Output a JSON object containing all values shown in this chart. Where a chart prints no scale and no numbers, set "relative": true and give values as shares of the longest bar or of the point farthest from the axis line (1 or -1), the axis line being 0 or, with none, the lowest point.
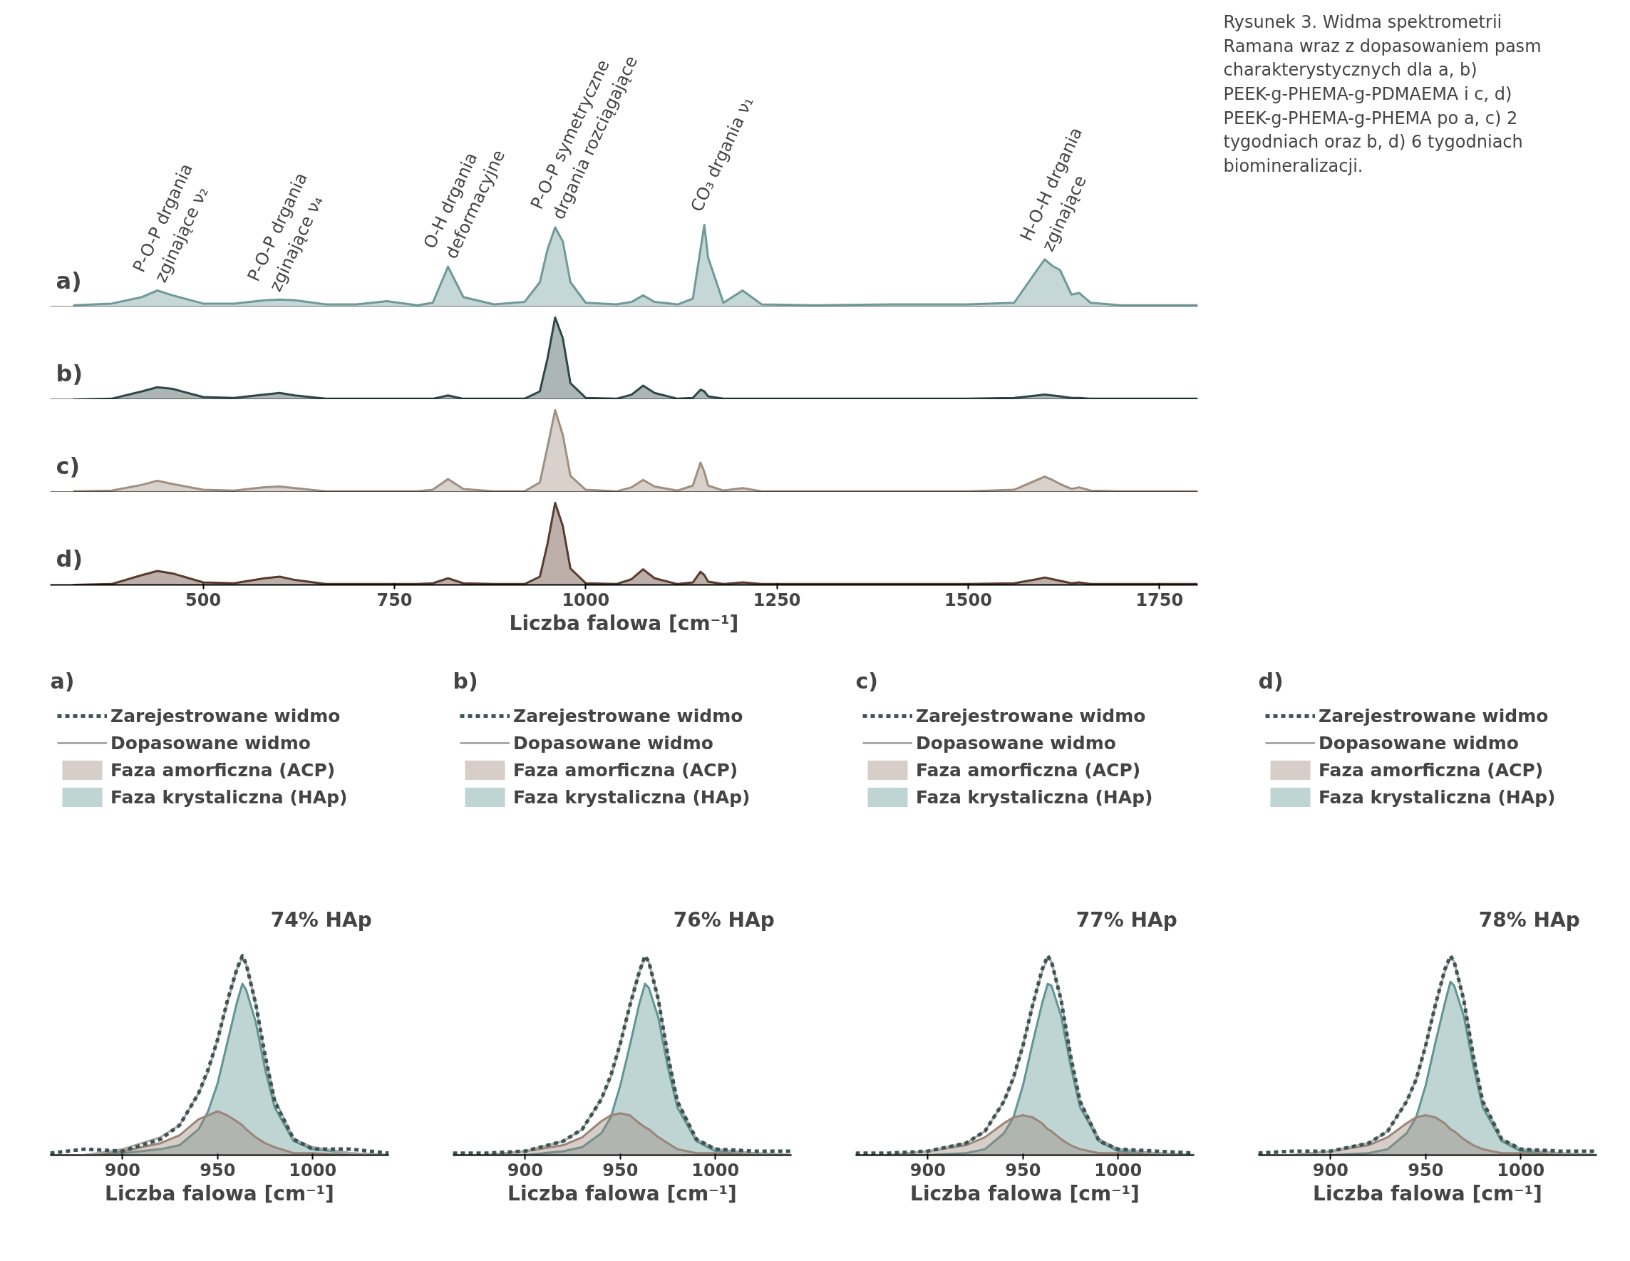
{
  "chart_data": [
    {
      "type": "area",
      "title": "a)",
      "relative": true,
      "xlim": [
        300,
        1800
      ],
      "tick_labels": false,
      "grid": false,
      "x": [
        330,
        380,
        420,
        440,
        460,
        500,
        540,
        580,
        600,
        620,
        660,
        700,
        740,
        780,
        800,
        820,
        840,
        880,
        920,
        940,
        950,
        960,
        970,
        980,
        1000,
        1040,
        1060,
        1075,
        1090,
        1120,
        1140,
        1150,
        1155,
        1160,
        1180,
        1205,
        1230,
        1300,
        1400,
        1500,
        1560,
        1590,
        1600,
        1610,
        1620,
        1635,
        1645,
        1660,
        1700,
        1800
      ],
      "series": [
        {
          "color": "#6e9a99",
          "values": [
            0.02,
            0.04,
            0.12,
            0.2,
            0.14,
            0.04,
            0.04,
            0.08,
            0.09,
            0.08,
            0.03,
            0.03,
            0.07,
            0.02,
            0.05,
            0.49,
            0.12,
            0.03,
            0.06,
            0.3,
            0.7,
            0.97,
            0.8,
            0.3,
            0.05,
            0.03,
            0.06,
            0.14,
            0.06,
            0.03,
            0.1,
            0.7,
            1.0,
            0.6,
            0.05,
            0.2,
            0.03,
            0.02,
            0.03,
            0.03,
            0.05,
            0.45,
            0.58,
            0.5,
            0.45,
            0.15,
            0.17,
            0.05,
            0.02,
            0.02
          ]
        }
      ],
      "annotations": [
        {
          "text": "P-O-P drgania\nzginające ν₂",
          "x": 440,
          "y": 0.2
        },
        {
          "text": "P-O-P drgania\nzginające ν₄",
          "x": 590,
          "y": 0.09
        },
        {
          "text": "O-H drgania\ndeformacyjne",
          "x": 820,
          "y": 0.49
        },
        {
          "text": "P-O-P symetryczne\ndrgania rozciągające",
          "x": 960,
          "y": 0.97
        },
        {
          "text": "CO₃ drgania ν₁",
          "x": 1155,
          "y": 1.0
        },
        {
          "text": "H-O-H drgania\nzginające",
          "x": 1600,
          "y": 0.58
        }
      ]
    },
    {
      "type": "area",
      "title": "b)",
      "relative": true,
      "xlim": [
        300,
        1800
      ],
      "tick_labels": false,
      "grid": false,
      "x": [
        330,
        380,
        420,
        440,
        460,
        500,
        540,
        580,
        600,
        620,
        660,
        700,
        740,
        780,
        800,
        820,
        840,
        880,
        920,
        940,
        950,
        960,
        970,
        980,
        1000,
        1040,
        1060,
        1075,
        1090,
        1120,
        1140,
        1150,
        1155,
        1160,
        1180,
        1205,
        1230,
        1300,
        1400,
        1500,
        1560,
        1590,
        1600,
        1610,
        1620,
        1635,
        1645,
        1660,
        1700,
        1800
      ],
      "series": [
        {
          "color": "#2e4846",
          "values": [
            0.0,
            0.01,
            0.1,
            0.15,
            0.13,
            0.03,
            0.02,
            0.06,
            0.08,
            0.05,
            0.01,
            0.01,
            0.01,
            0.01,
            0.01,
            0.05,
            0.01,
            0.01,
            0.01,
            0.1,
            0.5,
            1.0,
            0.75,
            0.2,
            0.02,
            0.01,
            0.06,
            0.17,
            0.08,
            0.01,
            0.02,
            0.12,
            0.1,
            0.04,
            0.01,
            0.01,
            0.01,
            0.01,
            0.01,
            0.01,
            0.02,
            0.05,
            0.06,
            0.05,
            0.04,
            0.02,
            0.02,
            0.01,
            0.01,
            0.01
          ]
        }
      ]
    },
    {
      "type": "area",
      "title": "c)",
      "relative": true,
      "xlim": [
        300,
        1800
      ],
      "tick_labels": false,
      "grid": false,
      "x": [
        330,
        380,
        420,
        440,
        460,
        500,
        540,
        580,
        600,
        620,
        660,
        700,
        740,
        780,
        800,
        820,
        840,
        880,
        920,
        940,
        950,
        960,
        970,
        980,
        1000,
        1040,
        1060,
        1075,
        1090,
        1120,
        1140,
        1150,
        1155,
        1160,
        1180,
        1205,
        1230,
        1300,
        1400,
        1500,
        1560,
        1590,
        1600,
        1610,
        1620,
        1635,
        1645,
        1660,
        1700,
        1800
      ],
      "series": [
        {
          "color": "#a08e80",
          "values": [
            0.01,
            0.02,
            0.09,
            0.14,
            0.1,
            0.03,
            0.02,
            0.06,
            0.07,
            0.05,
            0.01,
            0.01,
            0.01,
            0.01,
            0.03,
            0.16,
            0.04,
            0.01,
            0.01,
            0.12,
            0.55,
            1.0,
            0.7,
            0.2,
            0.03,
            0.01,
            0.06,
            0.15,
            0.07,
            0.02,
            0.08,
            0.36,
            0.25,
            0.08,
            0.02,
            0.05,
            0.01,
            0.01,
            0.01,
            0.01,
            0.03,
            0.15,
            0.19,
            0.15,
            0.1,
            0.04,
            0.06,
            0.02,
            0.01,
            0.01
          ]
        }
      ]
    },
    {
      "type": "area",
      "title": "d)",
      "relative": true,
      "xlim": [
        300,
        1800
      ],
      "xticks": [
        500,
        750,
        1000,
        1250,
        1500,
        1750
      ],
      "tick_labels": "x",
      "grid": false,
      "xlabel": "Liczba falowa [cm⁻¹]",
      "x": [
        330,
        380,
        420,
        440,
        460,
        500,
        540,
        580,
        600,
        620,
        660,
        700,
        740,
        780,
        800,
        820,
        840,
        880,
        920,
        940,
        950,
        960,
        970,
        980,
        1000,
        1040,
        1060,
        1075,
        1090,
        1120,
        1140,
        1150,
        1155,
        1160,
        1180,
        1205,
        1230,
        1300,
        1400,
        1500,
        1560,
        1590,
        1600,
        1610,
        1620,
        1635,
        1645,
        1660,
        1700,
        1800
      ],
      "series": [
        {
          "color": "#5a3a2c",
          "values": [
            0.0,
            0.01,
            0.12,
            0.17,
            0.14,
            0.03,
            0.02,
            0.08,
            0.1,
            0.06,
            0.01,
            0.01,
            0.01,
            0.01,
            0.02,
            0.08,
            0.02,
            0.01,
            0.01,
            0.1,
            0.5,
            1.0,
            0.72,
            0.2,
            0.02,
            0.01,
            0.07,
            0.19,
            0.08,
            0.01,
            0.03,
            0.16,
            0.12,
            0.04,
            0.01,
            0.03,
            0.01,
            0.01,
            0.01,
            0.01,
            0.02,
            0.07,
            0.09,
            0.07,
            0.05,
            0.02,
            0.03,
            0.01,
            0.01,
            0.01
          ]
        }
      ]
    },
    {
      "type": "other",
      "annotations": [
        "Rysunek 3. Widma spektrometrii Ramana wraz z dopasowaniem pasm charakterystycznych dla a, b) PEEK-g-PHEMA-g-PDMAEMA i c, d) PEEK-g-PHEMA-g-PHEMA po a, c) 2 tygodniach oraz b, d) 6 tygodniach biomineralizacji."
      ]
    },
    {
      "type": "line",
      "title": "a)",
      "relative": true,
      "xlim": [
        862,
        1040
      ],
      "xticks": [
        900,
        950,
        1000
      ],
      "xlabel": "Liczba falowa [cm⁻¹]",
      "legend": "top",
      "grid": false,
      "annotations": [
        "74% HAp"
      ],
      "x": [
        862,
        880,
        900,
        920,
        930,
        940,
        945,
        950,
        955,
        960,
        963,
        965,
        970,
        975,
        980,
        990,
        1000,
        1020,
        1040
      ],
      "series": [
        {
          "name": "Zarejestrowane widmo",
          "type": "line",
          "line_style": "dashed",
          "color": "#3d5452",
          "values": [
            0.01,
            0.03,
            0.02,
            0.08,
            0.15,
            0.31,
            0.43,
            0.58,
            0.77,
            0.93,
            1.0,
            0.96,
            0.76,
            0.5,
            0.27,
            0.08,
            0.03,
            0.03,
            0.01
          ]
        },
        {
          "name": "Dopasowane widmo",
          "type": "line",
          "color": "#a9a9a9",
          "values": [
            0,
            0,
            0.03,
            0.09,
            0.15,
            0.31,
            0.42,
            0.58,
            0.76,
            0.93,
            0.99,
            0.96,
            0.76,
            0.49,
            0.28,
            0.08,
            0.04,
            0.01,
            0
          ]
        },
        {
          "name": "Faza amorficzna (ACP)",
          "type": "area",
          "color": "#9a8578",
          "values": [
            0,
            0,
            0.02,
            0.06,
            0.1,
            0.18,
            0.2,
            0.22,
            0.2,
            0.17,
            0.15,
            0.13,
            0.09,
            0.06,
            0.04,
            0.01,
            0.01,
            0,
            0
          ]
        },
        {
          "name": "Faza krystaliczna (HAp)",
          "type": "area",
          "color": "#5f9594",
          "values": [
            0,
            0,
            0.01,
            0.03,
            0.05,
            0.13,
            0.22,
            0.36,
            0.56,
            0.76,
            0.86,
            0.83,
            0.67,
            0.43,
            0.24,
            0.07,
            0.03,
            0.01,
            0
          ]
        }
      ]
    },
    {
      "type": "line",
      "title": "b)",
      "relative": true,
      "xlim": [
        862,
        1040
      ],
      "xticks": [
        900,
        950,
        1000
      ],
      "xlabel": "Liczba falowa [cm⁻¹]",
      "legend": "top",
      "grid": false,
      "annotations": [
        "76% HAp"
      ],
      "x": [
        862,
        880,
        900,
        920,
        930,
        940,
        945,
        950,
        955,
        960,
        963,
        965,
        970,
        975,
        980,
        990,
        1000,
        1020,
        1040
      ],
      "series": [
        {
          "name": "Zarejestrowane widmo",
          "type": "line",
          "line_style": "dashed",
          "color": "#3d5452",
          "values": [
            0.01,
            0.01,
            0.02,
            0.07,
            0.13,
            0.28,
            0.4,
            0.56,
            0.75,
            0.92,
            1.0,
            0.97,
            0.78,
            0.5,
            0.27,
            0.08,
            0.03,
            0.02,
            0.02
          ]
        },
        {
          "name": "Dopasowane widmo",
          "type": "line",
          "color": "#a9a9a9",
          "values": [
            0,
            0,
            0.02,
            0.07,
            0.13,
            0.28,
            0.39,
            0.56,
            0.75,
            0.92,
            0.99,
            0.97,
            0.78,
            0.5,
            0.27,
            0.08,
            0.03,
            0.01,
            0
          ]
        },
        {
          "name": "Faza amorficzna (ACP)",
          "type": "area",
          "color": "#9a8578",
          "values": [
            0,
            0,
            0.02,
            0.05,
            0.09,
            0.17,
            0.2,
            0.21,
            0.2,
            0.16,
            0.14,
            0.13,
            0.09,
            0.06,
            0.03,
            0.01,
            0.01,
            0,
            0
          ]
        },
        {
          "name": "Faza krystaliczna (HAp)",
          "type": "area",
          "color": "#5f9594",
          "values": [
            0,
            0,
            0.0,
            0.02,
            0.04,
            0.11,
            0.19,
            0.35,
            0.55,
            0.76,
            0.86,
            0.84,
            0.69,
            0.44,
            0.24,
            0.07,
            0.02,
            0.01,
            0
          ]
        }
      ]
    },
    {
      "type": "line",
      "title": "c)",
      "relative": true,
      "xlim": [
        862,
        1040
      ],
      "xticks": [
        900,
        950,
        1000
      ],
      "xlabel": "Liczba falowa [cm⁻¹]",
      "legend": "top",
      "grid": false,
      "annotations": [
        "77% HAp"
      ],
      "x": [
        862,
        880,
        900,
        920,
        930,
        940,
        945,
        950,
        955,
        960,
        963,
        965,
        970,
        975,
        980,
        990,
        1000,
        1020,
        1040
      ],
      "series": [
        {
          "name": "Zarejestrowane widmo",
          "type": "line",
          "line_style": "dashed",
          "color": "#3d5452",
          "values": [
            0.01,
            0.01,
            0.02,
            0.06,
            0.12,
            0.27,
            0.39,
            0.55,
            0.75,
            0.93,
            1.0,
            0.97,
            0.78,
            0.5,
            0.27,
            0.07,
            0.03,
            0.02,
            0.01
          ]
        },
        {
          "name": "Dopasowane widmo",
          "type": "line",
          "color": "#a9a9a9",
          "values": [
            0,
            0,
            0.02,
            0.06,
            0.12,
            0.27,
            0.38,
            0.55,
            0.75,
            0.92,
            0.99,
            0.97,
            0.78,
            0.5,
            0.27,
            0.08,
            0.03,
            0.01,
            0
          ]
        },
        {
          "name": "Faza amorficzna (ACP)",
          "type": "area",
          "color": "#9a8578",
          "values": [
            0,
            0,
            0.02,
            0.05,
            0.09,
            0.16,
            0.19,
            0.2,
            0.19,
            0.16,
            0.13,
            0.12,
            0.08,
            0.05,
            0.03,
            0.01,
            0.01,
            0,
            0
          ]
        },
        {
          "name": "Faza krystaliczna (HAp)",
          "type": "area",
          "color": "#5f9594",
          "values": [
            0,
            0,
            0.0,
            0.01,
            0.03,
            0.11,
            0.19,
            0.35,
            0.56,
            0.76,
            0.86,
            0.85,
            0.7,
            0.45,
            0.24,
            0.07,
            0.02,
            0.01,
            0
          ]
        }
      ]
    },
    {
      "type": "line",
      "title": "d)",
      "relative": true,
      "xlim": [
        862,
        1040
      ],
      "xticks": [
        900,
        950,
        1000
      ],
      "xlabel": "Liczba falowa [cm⁻¹]",
      "legend": "top",
      "grid": false,
      "annotations": [
        "78% HAp"
      ],
      "x": [
        862,
        880,
        900,
        920,
        930,
        940,
        945,
        950,
        955,
        960,
        963,
        965,
        970,
        975,
        980,
        990,
        1000,
        1020,
        1040
      ],
      "series": [
        {
          "name": "Zarejestrowane widmo",
          "type": "line",
          "line_style": "dashed",
          "color": "#3d5452",
          "values": [
            0.01,
            0.02,
            0.02,
            0.06,
            0.12,
            0.27,
            0.38,
            0.55,
            0.75,
            0.93,
            1.0,
            0.97,
            0.78,
            0.5,
            0.27,
            0.08,
            0.03,
            0.02,
            0.02
          ]
        },
        {
          "name": "Dopasowane widmo",
          "type": "line",
          "color": "#a9a9a9",
          "values": [
            0,
            0,
            0.02,
            0.06,
            0.12,
            0.27,
            0.38,
            0.55,
            0.75,
            0.92,
            0.99,
            0.97,
            0.78,
            0.5,
            0.27,
            0.08,
            0.03,
            0.01,
            0
          ]
        },
        {
          "name": "Faza amorficzna (ACP)",
          "type": "area",
          "color": "#9a8578",
          "values": [
            0,
            0,
            0.02,
            0.05,
            0.09,
            0.16,
            0.19,
            0.2,
            0.19,
            0.16,
            0.13,
            0.12,
            0.08,
            0.05,
            0.03,
            0.01,
            0.01,
            0,
            0
          ]
        },
        {
          "name": "Faza krystaliczna (HAp)",
          "type": "area",
          "color": "#5f9594",
          "values": [
            0,
            0,
            0.0,
            0.01,
            0.03,
            0.11,
            0.19,
            0.35,
            0.56,
            0.76,
            0.87,
            0.85,
            0.7,
            0.45,
            0.24,
            0.07,
            0.02,
            0.01,
            0
          ]
        }
      ]
    }
  ]
}
